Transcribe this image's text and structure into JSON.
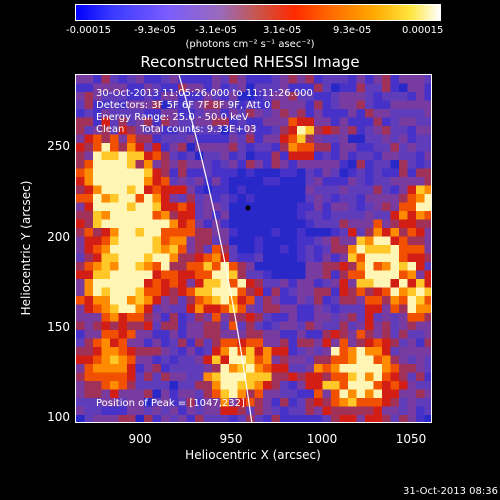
{
  "colorbar": {
    "ticks": [
      "-0.00015",
      "-9.3e-05",
      "-3.1e-05",
      "3.1e-05",
      "9.3e-05",
      "0.00015"
    ],
    "units": "(photons cm⁻² s⁻¹ asec⁻²)"
  },
  "title": "Reconstructed RHESSI Image",
  "info": {
    "time": "30-Oct-2013 11:05:26.000 to 11:11:26.000",
    "detectors": "Detectors: 3F 5F 6F 7F 8F 9F, Att 0",
    "energy": "Energy Range: 25.0 - 50.0 keV",
    "clean": "Clean     Total counts: 9.33E+03"
  },
  "peak": "Position of Peak = [1047,232]",
  "axes": {
    "xlabel": "Heliocentric X (arcsec)",
    "ylabel": "Heliocentric Y (arcsec)",
    "xticks": [
      "900",
      "950",
      "1000",
      "1050"
    ],
    "yticks": [
      "250",
      "200",
      "150",
      "100"
    ]
  },
  "timestamp": "31-Oct-2013 08:36"
}
